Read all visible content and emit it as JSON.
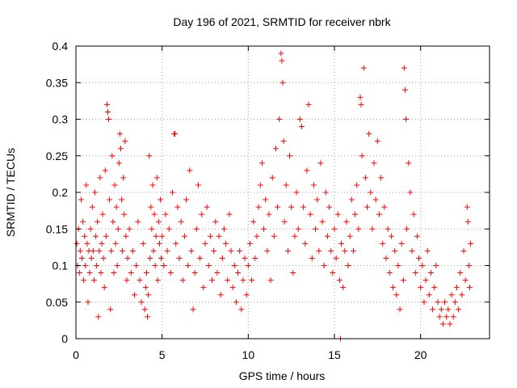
{
  "chart_data": {
    "type": "scatter",
    "title": "Day 196 of 2021, SRMTID for receiver nbrk",
    "xlabel": "GPS time / hours",
    "ylabel": "SRMTID / TECUs",
    "xlim": [
      0,
      24
    ],
    "ylim": [
      0,
      0.4
    ],
    "xticks": [
      0,
      5,
      10,
      15,
      20
    ],
    "xtick_labels": [
      "0",
      "5",
      "10",
      "15",
      "20"
    ],
    "yticks": [
      0,
      0.05,
      0.1,
      0.15,
      0.2,
      0.25,
      0.3,
      0.35,
      0.4
    ],
    "ytick_labels": [
      "0",
      "0.05",
      "0.1",
      "0.15",
      "0.2",
      "0.25",
      "0.3",
      "0.35",
      "0.4"
    ],
    "grid": true,
    "marker": "plus",
    "color": "#ff0000",
    "series": [
      {
        "name": "SRMTID",
        "points": [
          [
            0.05,
            0.13
          ],
          [
            0.1,
            0.1
          ],
          [
            0.15,
            0.15
          ],
          [
            0.2,
            0.09
          ],
          [
            0.25,
            0.12
          ],
          [
            0.3,
            0.19
          ],
          [
            0.35,
            0.11
          ],
          [
            0.4,
            0.16
          ],
          [
            0.45,
            0.08
          ],
          [
            0.5,
            0.14
          ],
          [
            0.55,
            0.1
          ],
          [
            0.6,
            0.21
          ],
          [
            0.65,
            0.13
          ],
          [
            0.7,
            0.05
          ],
          [
            0.75,
            0.12
          ],
          [
            0.8,
            0.09
          ],
          [
            0.85,
            0.15
          ],
          [
            0.9,
            0.11
          ],
          [
            0.95,
            0.18
          ],
          [
            1.0,
            0.12
          ],
          [
            1.05,
            0.08
          ],
          [
            1.1,
            0.2
          ],
          [
            1.15,
            0.14
          ],
          [
            1.2,
            0.1
          ],
          [
            1.25,
            0.16
          ],
          [
            1.3,
            0.03
          ],
          [
            1.35,
            0.12
          ],
          [
            1.4,
            0.22
          ],
          [
            1.45,
            0.09
          ],
          [
            1.5,
            0.13
          ],
          [
            1.55,
            0.17
          ],
          [
            1.6,
            0.11
          ],
          [
            1.65,
            0.07
          ],
          [
            1.7,
            0.23
          ],
          [
            1.75,
            0.14
          ],
          [
            1.8,
            0.32
          ],
          [
            1.85,
            0.31
          ],
          [
            1.9,
            0.3
          ],
          [
            1.95,
            0.19
          ],
          [
            2.0,
            0.04
          ],
          [
            2.05,
            0.12
          ],
          [
            2.1,
            0.25
          ],
          [
            2.15,
            0.16
          ],
          [
            2.2,
            0.09
          ],
          [
            2.25,
            0.21
          ],
          [
            2.3,
            0.13
          ],
          [
            2.35,
            0.18
          ],
          [
            2.4,
            0.1
          ],
          [
            2.45,
            0.15
          ],
          [
            2.5,
            0.24
          ],
          [
            2.55,
            0.28
          ],
          [
            2.6,
            0.26
          ],
          [
            2.65,
            0.19
          ],
          [
            2.7,
            0.12
          ],
          [
            2.75,
            0.22
          ],
          [
            2.8,
            0.17
          ],
          [
            2.85,
            0.27
          ],
          [
            2.9,
            0.14
          ],
          [
            2.95,
            0.08
          ],
          [
            3.0,
            0.11
          ],
          [
            3.1,
            0.15
          ],
          [
            3.2,
            0.09
          ],
          [
            3.3,
            0.12
          ],
          [
            3.4,
            0.06
          ],
          [
            3.5,
            0.1
          ],
          [
            3.6,
            0.16
          ],
          [
            3.7,
            0.08
          ],
          [
            3.8,
            0.05
          ],
          [
            3.9,
            0.13
          ],
          [
            4.0,
            0.04
          ],
          [
            4.05,
            0.07
          ],
          [
            4.1,
            0.09
          ],
          [
            4.15,
            0.03
          ],
          [
            4.2,
            0.06
          ],
          [
            4.25,
            0.25
          ],
          [
            4.3,
            0.11
          ],
          [
            4.35,
            0.18
          ],
          [
            4.4,
            0.15
          ],
          [
            4.45,
            0.21
          ],
          [
            4.5,
            0.12
          ],
          [
            4.55,
            0.17
          ],
          [
            4.6,
            0.1
          ],
          [
            4.65,
            0.14
          ],
          [
            4.7,
            0.22
          ],
          [
            4.75,
            0.08
          ],
          [
            4.8,
            0.16
          ],
          [
            4.85,
            0.13
          ],
          [
            4.9,
            0.19
          ],
          [
            4.95,
            0.11
          ],
          [
            5.0,
            0.14
          ],
          [
            5.1,
            0.1
          ],
          [
            5.2,
            0.17
          ],
          [
            5.3,
            0.12
          ],
          [
            5.4,
            0.15
          ],
          [
            5.5,
            0.09
          ],
          [
            5.6,
            0.2
          ],
          [
            5.7,
            0.28
          ],
          [
            5.75,
            0.28
          ],
          [
            5.8,
            0.13
          ],
          [
            5.9,
            0.18
          ],
          [
            6.0,
            0.11
          ],
          [
            6.1,
            0.16
          ],
          [
            6.2,
            0.08
          ],
          [
            6.3,
            0.14
          ],
          [
            6.4,
            0.19
          ],
          [
            6.5,
            0.1
          ],
          [
            6.6,
            0.23
          ],
          [
            6.7,
            0.12
          ],
          [
            6.8,
            0.04
          ],
          [
            6.9,
            0.09
          ],
          [
            7.0,
            0.15
          ],
          [
            7.1,
            0.21
          ],
          [
            7.2,
            0.11
          ],
          [
            7.3,
            0.17
          ],
          [
            7.4,
            0.07
          ],
          [
            7.5,
            0.13
          ],
          [
            7.6,
            0.18
          ],
          [
            7.7,
            0.1
          ],
          [
            7.8,
            0.14
          ],
          [
            7.9,
            0.08
          ],
          [
            8.0,
            0.12
          ],
          [
            8.1,
            0.16
          ],
          [
            8.2,
            0.09
          ],
          [
            8.3,
            0.14
          ],
          [
            8.4,
            0.06
          ],
          [
            8.5,
            0.11
          ],
          [
            8.6,
            0.15
          ],
          [
            8.7,
            0.13
          ],
          [
            8.8,
            0.08
          ],
          [
            8.9,
            0.17
          ],
          [
            9.0,
            0.12
          ],
          [
            9.1,
            0.07
          ],
          [
            9.2,
            0.1
          ],
          [
            9.3,
            0.05
          ],
          [
            9.4,
            0.09
          ],
          [
            9.5,
            0.12
          ],
          [
            9.6,
            0.04
          ],
          [
            9.7,
            0.08
          ],
          [
            9.8,
            0.11
          ],
          [
            9.9,
            0.06
          ],
          [
            10.0,
            0.1
          ],
          [
            10.1,
            0.13
          ],
          [
            10.2,
            0.08
          ],
          [
            10.3,
            0.16
          ],
          [
            10.4,
            0.11
          ],
          [
            10.5,
            0.14
          ],
          [
            10.6,
            0.18
          ],
          [
            10.7,
            0.21
          ],
          [
            10.8,
            0.24
          ],
          [
            10.9,
            0.15
          ],
          [
            11.0,
            0.19
          ],
          [
            11.1,
            0.12
          ],
          [
            11.2,
            0.17
          ],
          [
            11.3,
            0.08
          ],
          [
            11.4,
            0.22
          ],
          [
            11.5,
            0.14
          ],
          [
            11.6,
            0.26
          ],
          [
            11.7,
            0.18
          ],
          [
            11.8,
            0.3
          ],
          [
            11.9,
            0.39
          ],
          [
            11.95,
            0.38
          ],
          [
            12.0,
            0.35
          ],
          [
            12.05,
            0.27
          ],
          [
            12.1,
            0.16
          ],
          [
            12.2,
            0.21
          ],
          [
            12.3,
            0.12
          ],
          [
            12.4,
            0.25
          ],
          [
            12.5,
            0.18
          ],
          [
            12.6,
            0.09
          ],
          [
            12.7,
            0.14
          ],
          [
            12.8,
            0.2
          ],
          [
            12.9,
            0.15
          ],
          [
            13.0,
            0.3
          ],
          [
            13.1,
            0.29
          ],
          [
            13.2,
            0.18
          ],
          [
            13.3,
            0.13
          ],
          [
            13.4,
            0.23
          ],
          [
            13.5,
            0.32
          ],
          [
            13.6,
            0.17
          ],
          [
            13.7,
            0.11
          ],
          [
            13.8,
            0.21
          ],
          [
            13.9,
            0.15
          ],
          [
            14.0,
            0.19
          ],
          [
            14.1,
            0.12
          ],
          [
            14.2,
            0.24
          ],
          [
            14.3,
            0.16
          ],
          [
            14.4,
            0.1
          ],
          [
            14.5,
            0.2
          ],
          [
            14.6,
            0.14
          ],
          [
            14.7,
            0.18
          ],
          [
            14.8,
            0.12
          ],
          [
            14.9,
            0.09
          ],
          [
            15.0,
            0.15
          ],
          [
            15.1,
            0.11
          ],
          [
            15.2,
            0.17
          ],
          [
            15.3,
            0.08
          ],
          [
            15.4,
            0.13
          ],
          [
            15.5,
            0.07
          ],
          [
            15.6,
            0.12
          ],
          [
            15.7,
            0.16
          ],
          [
            15.8,
            0.1
          ],
          [
            15.9,
            0.14
          ],
          [
            16.0,
            0.19
          ],
          [
            16.1,
            0.12
          ],
          [
            16.2,
            0.17
          ],
          [
            16.3,
            0.21
          ],
          [
            16.4,
            0.15
          ],
          [
            16.5,
            0.33
          ],
          [
            16.55,
            0.32
          ],
          [
            16.6,
            0.25
          ],
          [
            16.7,
            0.37
          ],
          [
            16.8,
            0.22
          ],
          [
            16.9,
            0.18
          ],
          [
            17.0,
            0.28
          ],
          [
            17.1,
            0.2
          ],
          [
            17.2,
            0.15
          ],
          [
            17.3,
            0.24
          ],
          [
            17.4,
            0.19
          ],
          [
            17.5,
            0.27
          ],
          [
            17.6,
            0.17
          ],
          [
            17.7,
            0.22
          ],
          [
            17.8,
            0.13
          ],
          [
            17.9,
            0.18
          ],
          [
            18.0,
            0.11
          ],
          [
            18.1,
            0.15
          ],
          [
            18.2,
            0.09
          ],
          [
            18.3,
            0.14
          ],
          [
            18.4,
            0.07
          ],
          [
            18.5,
            0.12
          ],
          [
            18.6,
            0.06
          ],
          [
            18.7,
            0.1
          ],
          [
            18.8,
            0.04
          ],
          [
            18.9,
            0.13
          ],
          [
            19.0,
            0.08
          ],
          [
            19.05,
            0.37
          ],
          [
            19.1,
            0.34
          ],
          [
            19.15,
            0.3
          ],
          [
            19.2,
            0.15
          ],
          [
            19.3,
            0.24
          ],
          [
            19.4,
            0.2
          ],
          [
            19.5,
            0.12
          ],
          [
            19.6,
            0.17
          ],
          [
            19.7,
            0.09
          ],
          [
            19.8,
            0.14
          ],
          [
            19.9,
            0.11
          ],
          [
            20.0,
            0.07
          ],
          [
            20.1,
            0.1
          ],
          [
            20.2,
            0.05
          ],
          [
            20.3,
            0.08
          ],
          [
            20.4,
            0.12
          ],
          [
            20.5,
            0.06
          ],
          [
            20.6,
            0.09
          ],
          [
            20.7,
            0.04
          ],
          [
            20.8,
            0.07
          ],
          [
            20.9,
            0.1
          ],
          [
            21.0,
            0.05
          ],
          [
            21.1,
            0.03
          ],
          [
            21.2,
            0.04
          ],
          [
            21.3,
            0.02
          ],
          [
            21.4,
            0.05
          ],
          [
            21.5,
            0.03
          ],
          [
            21.6,
            0.04
          ],
          [
            21.7,
            0.02
          ],
          [
            21.8,
            0.06
          ],
          [
            21.9,
            0.03
          ],
          [
            22.0,
            0.05
          ],
          [
            22.1,
            0.07
          ],
          [
            22.2,
            0.04
          ],
          [
            22.3,
            0.09
          ],
          [
            22.4,
            0.06
          ],
          [
            22.5,
            0.12
          ],
          [
            22.6,
            0.08
          ],
          [
            22.7,
            0.18
          ],
          [
            22.75,
            0.16
          ],
          [
            22.8,
            0.1
          ],
          [
            22.85,
            0.07
          ],
          [
            22.9,
            0.13
          ],
          [
            15.35,
            0.0
          ]
        ]
      }
    ]
  }
}
